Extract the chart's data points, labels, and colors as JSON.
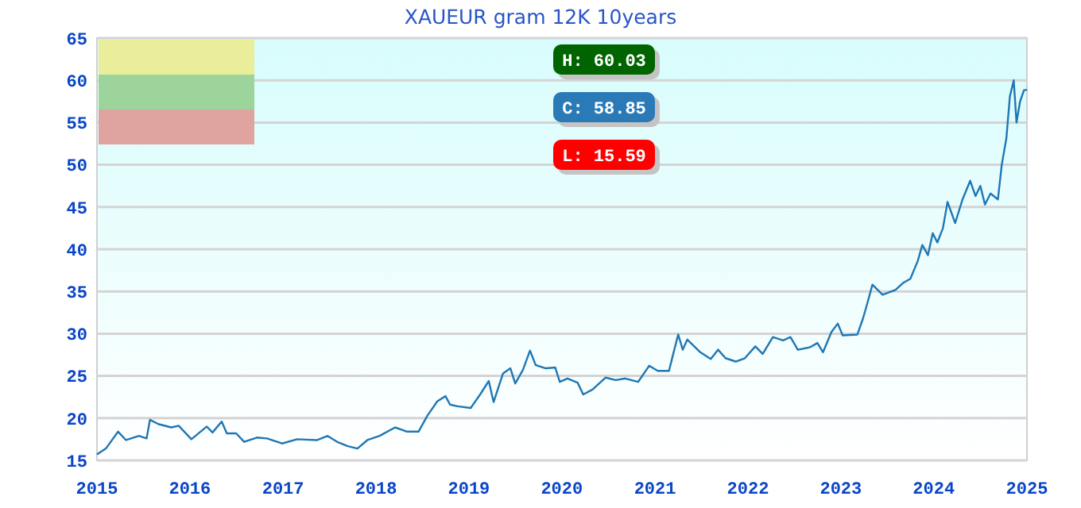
{
  "chart_data": {
    "type": "line",
    "title": "XAUEUR gram 12K 10years",
    "annotations": [
      "H: 60.03",
      "C: 58.85",
      "L: 15.59"
    ],
    "xlim": [
      "2015-01-01",
      "2025-01-01"
    ],
    "xticks": [
      "2015",
      "2016",
      "2017",
      "2018",
      "2019",
      "2020",
      "2021",
      "2022",
      "2023",
      "2024",
      "2025"
    ],
    "ylim": [
      15,
      65
    ],
    "yticks": [
      15,
      20,
      25,
      30,
      35,
      40,
      45,
      50,
      55,
      60,
      65
    ],
    "grid": "y",
    "marker": "none",
    "line_style": "solid",
    "series": [
      {
        "color": "#1f77b4",
        "x": [
          "2015-01-01",
          "2015-02-05",
          "2015-03-25",
          "2015-04-25",
          "2015-06-15",
          "2015-07-15",
          "2015-07-28",
          "2015-08-30",
          "2015-10-20",
          "2015-11-18",
          "2016-01-07",
          "2016-03-07",
          "2016-03-30",
          "2016-05-05",
          "2016-05-25",
          "2016-07-01",
          "2016-08-01",
          "2016-09-20",
          "2016-10-30",
          "2016-12-28",
          "2017-02-25",
          "2017-05-15",
          "2017-06-25",
          "2017-08-01",
          "2017-09-10",
          "2017-10-20",
          "2017-11-28",
          "2018-01-15",
          "2018-03-17",
          "2018-05-03",
          "2018-06-17",
          "2018-07-22",
          "2018-08-30",
          "2018-10-01",
          "2018-10-19",
          "2018-11-18",
          "2019-01-08",
          "2019-02-14",
          "2019-03-20",
          "2019-04-08",
          "2019-05-15",
          "2019-06-13",
          "2019-07-02",
          "2019-08-01",
          "2019-08-29",
          "2019-09-20",
          "2019-10-30",
          "2019-12-06",
          "2019-12-24",
          "2020-01-23",
          "2020-03-03",
          "2020-03-25",
          "2020-05-01",
          "2020-06-21",
          "2020-07-31",
          "2020-09-06",
          "2020-10-27",
          "2020-12-09",
          "2021-01-12",
          "2021-02-25",
          "2021-03-11",
          "2021-04-02",
          "2021-04-20",
          "2021-05-08",
          "2021-06-28",
          "2021-08-08",
          "2021-09-06",
          "2021-10-05",
          "2021-11-14",
          "2021-12-20",
          "2022-01-30",
          "2022-02-28",
          "2022-04-09",
          "2022-05-19",
          "2022-06-17",
          "2022-07-16",
          "2022-09-02",
          "2022-10-01",
          "2022-10-23",
          "2022-11-25",
          "2022-12-20",
          "2023-01-08",
          "2023-03-07",
          "2023-03-29",
          "2023-04-16",
          "2023-05-05",
          "2023-06-14",
          "2023-08-04",
          "2023-09-02",
          "2023-10-01",
          "2023-10-30",
          "2023-11-17",
          "2023-12-09",
          "2023-12-28",
          "2024-01-15",
          "2024-02-06",
          "2024-02-24",
          "2024-03-25",
          "2024-04-23",
          "2024-05-23",
          "2024-06-13",
          "2024-07-02",
          "2024-07-20",
          "2024-08-11",
          "2024-09-09",
          "2024-09-24",
          "2024-10-12",
          "2024-10-26",
          "2024-11-10",
          "2024-11-21",
          "2024-12-05",
          "2024-12-20",
          "2025-01-01"
        ],
        "values": [
          15.7,
          16.4,
          18.4,
          17.4,
          17.9,
          17.6,
          19.8,
          19.3,
          18.9,
          19.1,
          17.5,
          19.0,
          18.3,
          19.6,
          18.2,
          18.2,
          17.2,
          17.7,
          17.6,
          17.0,
          17.5,
          17.4,
          17.9,
          17.2,
          16.7,
          16.4,
          17.4,
          17.9,
          18.9,
          18.4,
          18.4,
          20.3,
          22.0,
          22.6,
          21.6,
          21.4,
          21.2,
          22.8,
          24.4,
          21.9,
          25.3,
          25.9,
          24.1,
          25.7,
          28.0,
          26.3,
          25.9,
          26.0,
          24.3,
          24.7,
          24.2,
          22.8,
          23.4,
          24.8,
          24.5,
          24.7,
          24.3,
          26.2,
          25.6,
          25.6,
          27.3,
          29.9,
          28.1,
          29.3,
          27.8,
          27.0,
          28.1,
          27.1,
          26.7,
          27.1,
          28.5,
          27.6,
          29.6,
          29.2,
          29.6,
          28.1,
          28.4,
          28.9,
          27.8,
          30.2,
          31.2,
          29.8,
          29.9,
          31.8,
          33.7,
          35.8,
          34.6,
          35.2,
          36.0,
          36.5,
          38.6,
          40.5,
          39.3,
          41.9,
          40.8,
          42.5,
          45.6,
          43.1,
          45.9,
          48.1,
          46.3,
          47.5,
          45.3,
          46.6,
          45.9,
          50.0,
          53.1,
          58.1,
          60.0,
          55.0,
          57.5,
          58.8,
          58.9
        ]
      }
    ]
  }
}
